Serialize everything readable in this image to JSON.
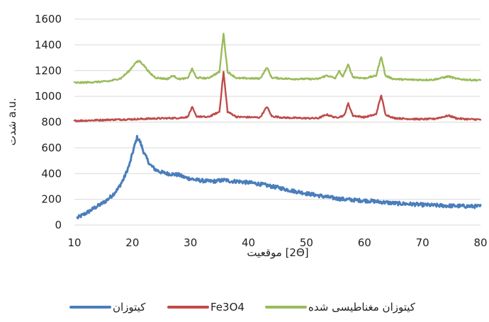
{
  "chart_data": {
    "type": "line",
    "title": "",
    "xlabel": "موقعیت [2Θ]",
    "ylabel": "شدت a.u.",
    "xlim": [
      10,
      80
    ],
    "ylim": [
      0,
      1600
    ],
    "x_ticks": [
      10,
      20,
      30,
      40,
      50,
      60,
      70,
      80
    ],
    "y_ticks": [
      0,
      200,
      400,
      600,
      800,
      1000,
      1200,
      1400,
      1600
    ],
    "grid": "horizontal",
    "legend": "bottom",
    "series": [
      {
        "name": "کیتوزان",
        "color": "#4a7ebb",
        "points": [
          [
            10.5,
            55
          ],
          [
            11.5,
            80
          ],
          [
            12.5,
            105
          ],
          [
            13.5,
            135
          ],
          [
            14.5,
            160
          ],
          [
            15.5,
            190
          ],
          [
            16.5,
            230
          ],
          [
            17.5,
            280
          ],
          [
            18.5,
            360
          ],
          [
            19.5,
            470
          ],
          [
            20.2,
            590
          ],
          [
            20.8,
            680
          ],
          [
            21.3,
            650
          ],
          [
            22,
            560
          ],
          [
            23,
            470
          ],
          [
            24,
            430
          ],
          [
            25,
            410
          ],
          [
            26,
            400
          ],
          [
            27,
            395
          ],
          [
            28,
            390
          ],
          [
            29,
            370
          ],
          [
            30,
            360
          ],
          [
            31,
            350
          ],
          [
            32,
            345
          ],
          [
            33,
            340
          ],
          [
            34,
            340
          ],
          [
            35,
            345
          ],
          [
            36,
            350
          ],
          [
            37,
            340
          ],
          [
            38,
            340
          ],
          [
            39,
            335
          ],
          [
            40,
            330
          ],
          [
            41,
            325
          ],
          [
            42,
            318
          ],
          [
            43,
            310
          ],
          [
            44,
            300
          ],
          [
            45,
            292
          ],
          [
            46,
            282
          ],
          [
            47,
            272
          ],
          [
            48,
            262
          ],
          [
            49,
            255
          ],
          [
            50,
            245
          ],
          [
            51,
            238
          ],
          [
            52,
            230
          ],
          [
            53,
            222
          ],
          [
            54,
            215
          ],
          [
            55,
            208
          ],
          [
            56,
            202
          ],
          [
            57,
            198
          ],
          [
            58,
            195
          ],
          [
            59,
            192
          ],
          [
            60,
            190
          ],
          [
            61,
            187
          ],
          [
            62,
            183
          ],
          [
            63,
            178
          ],
          [
            64,
            174
          ],
          [
            65,
            170
          ],
          [
            66,
            167
          ],
          [
            67,
            165
          ],
          [
            68,
            163
          ],
          [
            69,
            160
          ],
          [
            70,
            157
          ],
          [
            71,
            155
          ],
          [
            72,
            153
          ],
          [
            73,
            152
          ],
          [
            74,
            150
          ],
          [
            75,
            149
          ],
          [
            76,
            148
          ],
          [
            77,
            147
          ],
          [
            78,
            146
          ],
          [
            79,
            145
          ],
          [
            80,
            145
          ]
        ]
      },
      {
        "name": "Fe3O4",
        "color": "#be4b48",
        "points": [
          [
            10,
            810
          ],
          [
            12,
            812
          ],
          [
            14,
            815
          ],
          [
            16,
            818
          ],
          [
            18,
            820
          ],
          [
            20,
            822
          ],
          [
            22,
            825
          ],
          [
            24,
            828
          ],
          [
            26,
            830
          ],
          [
            28,
            832
          ],
          [
            29.5,
            840
          ],
          [
            30.3,
            915
          ],
          [
            31,
            845
          ],
          [
            33,
            838
          ],
          [
            35,
            880
          ],
          [
            35.7,
            1190
          ],
          [
            36.4,
            880
          ],
          [
            38,
            840
          ],
          [
            40,
            838
          ],
          [
            42,
            836
          ],
          [
            43.2,
            920
          ],
          [
            44,
            845
          ],
          [
            46,
            835
          ],
          [
            48,
            832
          ],
          [
            50,
            830
          ],
          [
            52,
            830
          ],
          [
            53.5,
            858
          ],
          [
            55,
            835
          ],
          [
            56.5,
            850
          ],
          [
            57.2,
            945
          ],
          [
            58,
            850
          ],
          [
            60,
            838
          ],
          [
            62,
            860
          ],
          [
            62.9,
            1010
          ],
          [
            63.6,
            860
          ],
          [
            65,
            832
          ],
          [
            67,
            826
          ],
          [
            70,
            822
          ],
          [
            72,
            825
          ],
          [
            74.5,
            850
          ],
          [
            76,
            828
          ],
          [
            78,
            822
          ],
          [
            80,
            820
          ]
        ]
      },
      {
        "name": "کیتوزان مغناطیسی شده",
        "color": "#9bbb59",
        "points": [
          [
            10,
            1105
          ],
          [
            12,
            1108
          ],
          [
            14,
            1112
          ],
          [
            16,
            1118
          ],
          [
            18,
            1140
          ],
          [
            19.5,
            1200
          ],
          [
            20.5,
            1260
          ],
          [
            21.2,
            1275
          ],
          [
            22,
            1240
          ],
          [
            23,
            1180
          ],
          [
            24,
            1145
          ],
          [
            26,
            1135
          ],
          [
            27,
            1160
          ],
          [
            28,
            1135
          ],
          [
            29.5,
            1140
          ],
          [
            30.3,
            1215
          ],
          [
            31,
            1145
          ],
          [
            33,
            1140
          ],
          [
            35,
            1190
          ],
          [
            35.7,
            1490
          ],
          [
            36.4,
            1190
          ],
          [
            38,
            1140
          ],
          [
            40,
            1140
          ],
          [
            42,
            1138
          ],
          [
            43.2,
            1225
          ],
          [
            44,
            1145
          ],
          [
            46,
            1138
          ],
          [
            48,
            1135
          ],
          [
            50,
            1135
          ],
          [
            52,
            1135
          ],
          [
            53.5,
            1162
          ],
          [
            55,
            1140
          ],
          [
            55.6,
            1200
          ],
          [
            56.2,
            1150
          ],
          [
            57.2,
            1245
          ],
          [
            58,
            1150
          ],
          [
            60,
            1140
          ],
          [
            62,
            1160
          ],
          [
            62.9,
            1310
          ],
          [
            63.6,
            1160
          ],
          [
            65,
            1135
          ],
          [
            67,
            1130
          ],
          [
            70,
            1128
          ],
          [
            72,
            1130
          ],
          [
            74.5,
            1155
          ],
          [
            76,
            1135
          ],
          [
            78,
            1128
          ],
          [
            80,
            1125
          ]
        ]
      }
    ]
  }
}
